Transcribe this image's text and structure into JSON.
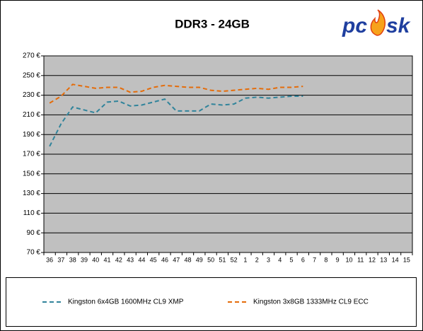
{
  "chart_data": {
    "type": "line",
    "title": "DDR3 - 24GB",
    "logo": [
      "pc",
      "sk"
    ],
    "categories": [
      "36",
      "37",
      "38",
      "39",
      "40",
      "41",
      "42",
      "43",
      "44",
      "45",
      "46",
      "47",
      "48",
      "49",
      "50",
      "51",
      "52",
      "1",
      "2",
      "3",
      "4",
      "5",
      "6",
      "7",
      "8",
      "9",
      "10",
      "11",
      "12",
      "13",
      "14",
      "15"
    ],
    "series": [
      {
        "name": "Kingston 6x4GB 1600MHz CL9 XMP",
        "color": "#31849b",
        "dash": true,
        "values": [
          178,
          201,
          218,
          215,
          212,
          223,
          224,
          219,
          220,
          223,
          226,
          214,
          214,
          214,
          221,
          220,
          221,
          227,
          228,
          227,
          228,
          229,
          229,
          null,
          null,
          null,
          null,
          null,
          null,
          null,
          null,
          null
        ]
      },
      {
        "name": "Kingston 3x8GB 1333MHz CL9 ECC",
        "color": "#e46c0a",
        "dash": true,
        "values": [
          222,
          229,
          241,
          239,
          237,
          238,
          238,
          233,
          234,
          238,
          240,
          239,
          238,
          238,
          235,
          234,
          235,
          236,
          237,
          236,
          238,
          238,
          239,
          null,
          null,
          null,
          null,
          null,
          null,
          null,
          null,
          null
        ]
      }
    ],
    "ylim": [
      70,
      270
    ],
    "yticks": [
      {
        "value": 70,
        "label": "70 €"
      },
      {
        "value": 90,
        "label": "90 €"
      },
      {
        "value": 110,
        "label": "110 €"
      },
      {
        "value": 130,
        "label": "130 €"
      },
      {
        "value": 150,
        "label": "150 €"
      },
      {
        "value": 170,
        "label": "170 €"
      },
      {
        "value": 190,
        "label": "190 €"
      },
      {
        "value": 210,
        "label": "210 €"
      },
      {
        "value": 230,
        "label": "230 €"
      },
      {
        "value": 250,
        "label": "250 €"
      },
      {
        "value": 270,
        "label": "270 €"
      }
    ],
    "grid": true,
    "plot_color": "#c0c0c0",
    "legend": "bottom"
  }
}
